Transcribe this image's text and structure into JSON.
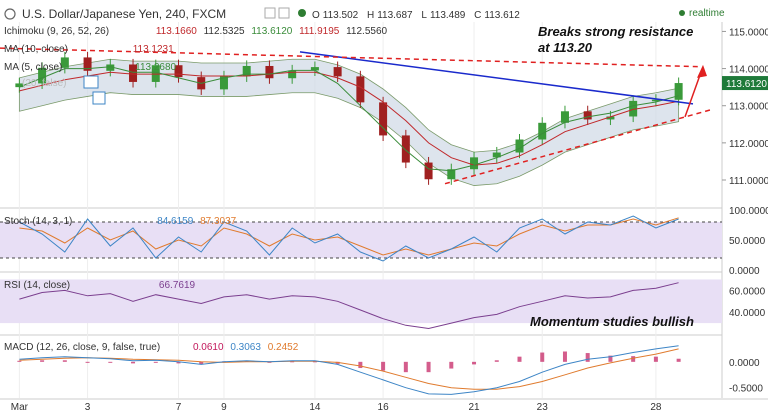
{
  "header": {
    "symbol": "U.S. Dollar/Japanese Yen, 240, FXCM",
    "ohlc": [
      {
        "k": "O",
        "v": "113.502"
      },
      {
        "k": "H",
        "v": "113.687"
      },
      {
        "k": "L",
        "v": "113.489"
      },
      {
        "k": "C",
        "v": "113.612"
      }
    ],
    "realtime": "realtime"
  },
  "legend": {
    "ichimoku": {
      "label": "Ichimoku (9, 26, 52, 26)",
      "values": [
        "113.1660",
        "112.5325",
        "113.6120",
        "111.9195",
        "112.5560"
      ]
    },
    "ma10": {
      "label": "MA (10, close)",
      "value": "113.1231"
    },
    "ma5": {
      "label": "MA (5, close)",
      "value": "113.2680"
    },
    "ma_faded": {
      "label": "(20, false)"
    },
    "stoch": {
      "label": "Stoch (14, 3, 1)",
      "values": [
        "84.6159",
        "87.3037"
      ]
    },
    "rsi": {
      "label": "RSI (14, close)",
      "value": "66.7619"
    },
    "macd": {
      "label": "MACD (12, 26, close, 9, false, true)",
      "values": [
        "0.0610",
        "0.3063",
        "0.2452"
      ]
    }
  },
  "annotations": {
    "breakout_line1": "Breaks strong resistance",
    "breakout_line2": "at 113.20",
    "momentum": "Momentum studies bullish"
  },
  "price_tag": "113.6120",
  "axes": {
    "price_ticks": [
      "115.0000",
      "114.0000",
      "113.0000",
      "112.0000",
      "111.0000"
    ],
    "stoch_ticks": [
      "100.0000",
      "50.0000",
      "0.0000"
    ],
    "rsi_ticks": [
      "60.0000",
      "40.0000"
    ],
    "macd_ticks": [
      "0.0000",
      "-0.5000"
    ],
    "x_ticks": [
      "Mar",
      "3",
      "7",
      "9",
      "14",
      "16",
      "21",
      "23",
      "28"
    ]
  },
  "chart_data": {
    "type": "line",
    "title": "U.S. Dollar/Japanese Yen, 240, FXCM",
    "x_labels": [
      "Mar",
      "3",
      "7",
      "9",
      "14",
      "16",
      "21",
      "23",
      "28"
    ],
    "series": [
      {
        "name": "U.S. Dollar/Japanese Yen",
        "values": [
          113.6,
          114.02,
          114.3,
          113.94,
          114.11,
          113.64,
          114.09,
          113.77,
          113.44,
          113.79,
          114.07,
          113.74,
          113.95,
          114.04,
          113.79,
          113.09,
          112.2,
          111.47,
          111.02,
          111.29,
          111.61,
          111.74,
          112.09,
          112.54,
          112.85,
          112.63,
          112.71,
          113.13,
          113.16,
          113.61
        ]
      },
      {
        "name": "MA (10, close)",
        "values": [
          113.4,
          113.55,
          113.7,
          113.8,
          113.9,
          113.85,
          113.85,
          113.85,
          113.8,
          113.8,
          113.8,
          113.85,
          113.9,
          113.9,
          113.75,
          113.5,
          113.1,
          112.6,
          112.0,
          111.6,
          111.4,
          111.45,
          111.65,
          111.95,
          112.3,
          112.5,
          112.7,
          112.9,
          113.0,
          113.12
        ]
      },
      {
        "name": "MA (5, close)",
        "values": [
          113.5,
          113.75,
          114.0,
          114.0,
          114.05,
          113.9,
          113.9,
          113.75,
          113.6,
          113.75,
          113.85,
          113.85,
          113.95,
          113.95,
          113.6,
          113.0,
          112.4,
          111.8,
          111.3,
          111.25,
          111.4,
          111.6,
          111.85,
          112.25,
          112.55,
          112.7,
          112.8,
          113.0,
          113.1,
          113.27
        ]
      }
    ],
    "stoch": {
      "k": [
        80,
        60,
        30,
        85,
        40,
        70,
        20,
        55,
        30,
        80,
        65,
        25,
        70,
        45,
        60,
        30,
        15,
        40,
        20,
        35,
        55,
        30,
        70,
        85,
        60,
        80,
        75,
        90,
        70,
        85
      ],
      "d": [
        70,
        65,
        45,
        70,
        50,
        65,
        35,
        50,
        40,
        70,
        60,
        40,
        60,
        50,
        55,
        40,
        25,
        35,
        25,
        35,
        45,
        40,
        60,
        75,
        65,
        75,
        75,
        85,
        75,
        87
      ]
    },
    "rsi": [
      52,
      58,
      60,
      55,
      57,
      50,
      56,
      52,
      48,
      54,
      56,
      52,
      55,
      54,
      50,
      42,
      34,
      28,
      25,
      30,
      35,
      38,
      45,
      50,
      55,
      53,
      54,
      60,
      62,
      67
    ],
    "macd": {
      "macd": [
        0.05,
        0.08,
        0.1,
        0.08,
        0.06,
        0.02,
        0.03,
        0.0,
        -0.05,
        0.0,
        0.02,
        0.0,
        0.02,
        0.02,
        -0.05,
        -0.2,
        -0.35,
        -0.5,
        -0.62,
        -0.63,
        -0.58,
        -0.5,
        -0.38,
        -0.2,
        -0.05,
        0.05,
        0.1,
        0.18,
        0.25,
        0.31
      ],
      "signal": [
        0.03,
        0.05,
        0.07,
        0.08,
        0.07,
        0.05,
        0.04,
        0.03,
        0.0,
        -0.01,
        0.0,
        0.0,
        0.01,
        0.01,
        -0.01,
        -0.08,
        -0.18,
        -0.3,
        -0.42,
        -0.5,
        -0.53,
        -0.53,
        -0.48,
        -0.38,
        -0.25,
        -0.12,
        -0.02,
        0.07,
        0.15,
        0.25
      ],
      "hist": [
        0.02,
        0.03,
        0.03,
        0.0,
        -0.01,
        -0.03,
        -0.01,
        -0.03,
        -0.05,
        0.01,
        0.02,
        0.0,
        0.01,
        0.01,
        -0.04,
        -0.12,
        -0.17,
        -0.2,
        -0.2,
        -0.13,
        -0.05,
        0.03,
        0.1,
        0.18,
        0.2,
        0.17,
        0.12,
        0.11,
        0.1,
        0.06
      ]
    },
    "price_range": [
      110.3,
      115.2
    ],
    "stoch_range": [
      0,
      100
    ],
    "rsi_range": [
      20,
      75
    ],
    "macd_range": [
      -0.7,
      0.5
    ],
    "grid": true,
    "colors": {
      "up": "#3a9a3a",
      "down": "#a02020",
      "ma10": "#c0282b",
      "ma5": "#3a8c3a",
      "trend": "#1a2acc",
      "dash": "#e02020",
      "stochK": "#3d85c6",
      "stochD": "#e07b2e",
      "rsi": "#7b3f8f",
      "osc_band": "#e8dff5",
      "tag": "#1f7a3a"
    }
  }
}
